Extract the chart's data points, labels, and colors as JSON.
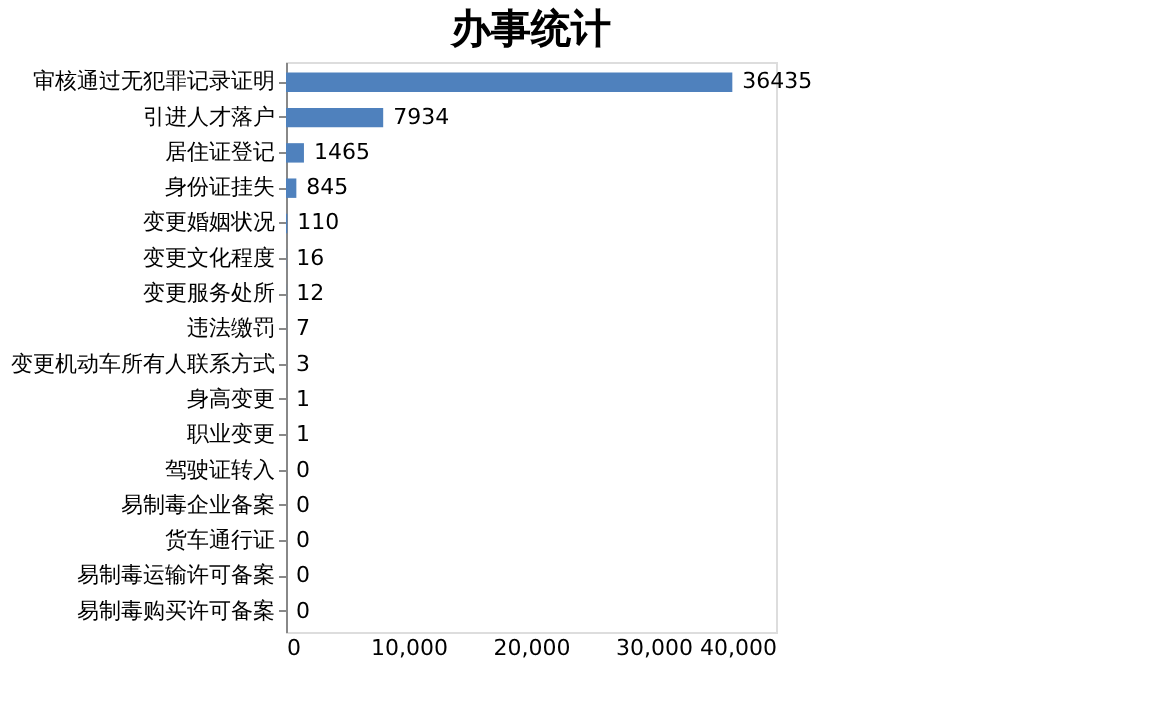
{
  "chart_data": {
    "type": "bar",
    "orientation": "horizontal",
    "title": "办事统计",
    "categories": [
      "审核通过无犯罪记录证明",
      "引进人才落户",
      "居住证登记",
      "身份证挂失",
      "变更婚姻状况",
      "变更文化程度",
      "变更服务处所",
      "违法缴罚",
      "变更机动车所有人联系方式",
      "身高变更",
      "职业变更",
      "驾驶证转入",
      "易制毒企业备案",
      "货车通行证",
      "易制毒运输许可备案",
      "易制毒购买许可备案"
    ],
    "values": [
      36435,
      7934,
      1465,
      845,
      110,
      16,
      12,
      7,
      3,
      1,
      1,
      0,
      0,
      0,
      0,
      0
    ],
    "color": "#4f81bd",
    "data_labels": true,
    "grid": false,
    "xlim": [
      0,
      40000
    ],
    "xticks": [
      0,
      {
        "value": 10000,
        "label": "10,000"
      },
      {
        "value": 20000,
        "label": "20,000"
      },
      {
        "value": 30000,
        "label": "30,000"
      },
      {
        "value": 40000,
        "label": "40,000"
      }
    ]
  }
}
